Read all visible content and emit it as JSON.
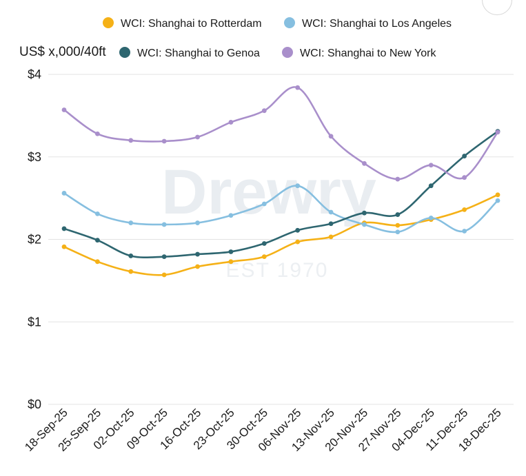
{
  "chart_data": {
    "type": "line",
    "title": "",
    "ylabel": "US$ x,000/40ft",
    "xlabel": "",
    "ylim": [
      0,
      4
    ],
    "yticks": [
      0,
      1,
      2,
      3,
      4
    ],
    "ytick_labels": [
      "$0",
      "$1",
      "$2",
      "$3",
      "$4"
    ],
    "categories": [
      "18-Sep-25",
      "25-Sep-25",
      "02-Oct-25",
      "09-Oct-25",
      "16-Oct-25",
      "23-Oct-25",
      "30-Oct-25",
      "06-Nov-25",
      "13-Nov-25",
      "20-Nov-25",
      "27-Nov-25",
      "04-Dec-25",
      "11-Dec-25",
      "18-Dec-25"
    ],
    "grid": true,
    "legend_position": "top",
    "watermark": {
      "brand": "Drewry",
      "sub": "EST 1970"
    },
    "series": [
      {
        "name": "WCI: Shanghai to Rotterdam",
        "color": "#f5b117",
        "values": [
          1.91,
          1.73,
          1.61,
          1.57,
          1.67,
          1.73,
          1.79,
          1.97,
          2.03,
          2.2,
          2.17,
          2.24,
          2.36,
          2.54
        ]
      },
      {
        "name": "WCI: Shanghai to Los Angeles",
        "color": "#86bfe0",
        "values": [
          2.56,
          2.31,
          2.2,
          2.18,
          2.2,
          2.29,
          2.43,
          2.65,
          2.33,
          2.18,
          2.09,
          2.26,
          2.1,
          2.47
        ]
      },
      {
        "name": "WCI: Shanghai to Genoa",
        "color": "#2e6670",
        "values": [
          2.13,
          1.99,
          1.8,
          1.79,
          1.82,
          1.85,
          1.95,
          2.11,
          2.19,
          2.32,
          2.3,
          2.65,
          3.01,
          3.31
        ]
      },
      {
        "name": "WCI: Shanghai to New York",
        "color": "#a98fcb",
        "values": [
          3.57,
          3.28,
          3.2,
          3.19,
          3.24,
          3.42,
          3.56,
          3.84,
          3.25,
          2.92,
          2.73,
          2.9,
          2.75,
          3.3
        ]
      }
    ]
  }
}
